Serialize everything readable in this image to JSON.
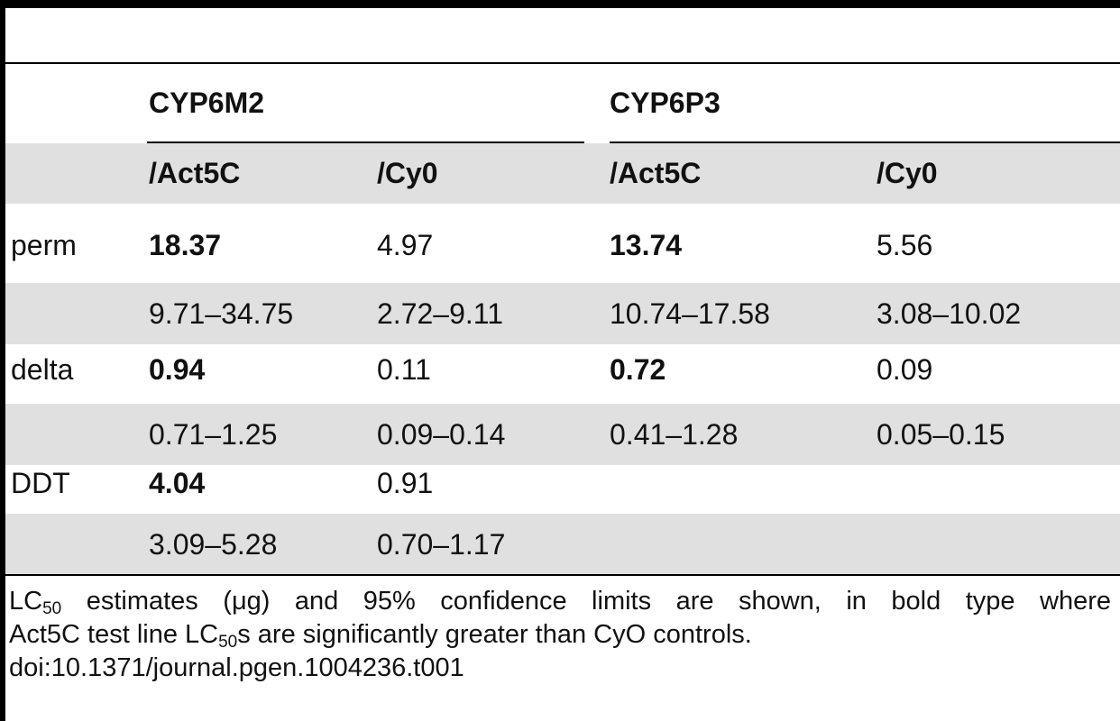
{
  "table": {
    "group_headers": [
      "CYP6M2",
      "CYP6P3"
    ],
    "sub_headers": [
      "/Act5C",
      "/Cy0",
      "/Act5C",
      "/Cy0"
    ],
    "rows": [
      {
        "label": "perm",
        "values": [
          "18.37",
          "4.97",
          "13.74",
          "5.56"
        ],
        "ci": [
          "9.71–34.75",
          "2.72–9.11",
          "10.74–17.58",
          "3.08–10.02"
        ]
      },
      {
        "label": "delta",
        "values": [
          "0.94",
          "0.11",
          "0.72",
          "0.09"
        ],
        "ci": [
          "0.71–1.25",
          "0.09–0.14",
          "0.41–1.28",
          "0.05–0.15"
        ]
      },
      {
        "label": "DDT",
        "values": [
          "4.04",
          "0.91",
          "",
          ""
        ],
        "ci": [
          "3.09–5.28",
          "0.70–1.17",
          "",
          ""
        ]
      }
    ]
  },
  "footnote": {
    "l1_a": "LC",
    "l1_sub": "50",
    "l1_b": " estimates (μg) and 95% confidence limits are shown, in bold type where",
    "l2_a": "Act5C test line LC",
    "l2_sub": "50",
    "l2_b": "s are significantly greater than CyO controls.",
    "doi": "doi:10.1371/journal.pgen.1004236.t001"
  }
}
